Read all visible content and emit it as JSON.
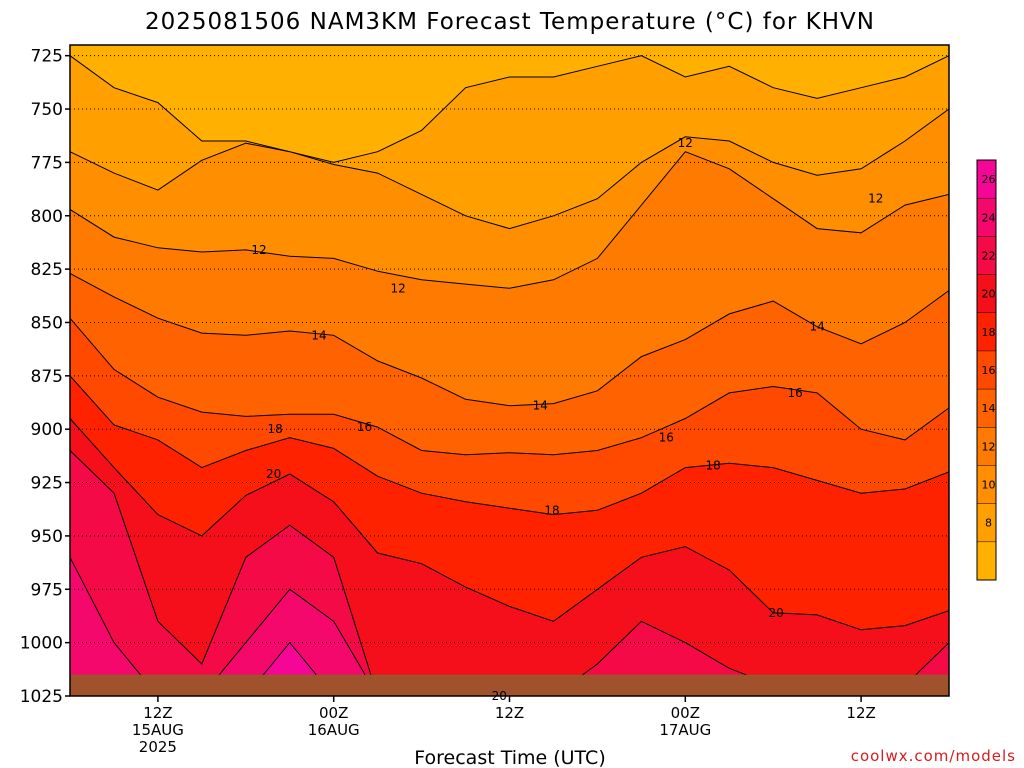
{
  "chart_data": {
    "type": "heatmap",
    "title": "2025081506 NAM3KM Forecast Temperature (°C) for KHVN",
    "xlabel": "Forecast Time (UTC)",
    "ylabel": "",
    "credit": "coolwx.com/models",
    "y_axis": {
      "ticks": [
        725,
        750,
        775,
        800,
        825,
        850,
        875,
        900,
        925,
        950,
        975,
        1000,
        1025
      ],
      "tick_labels": [
        "725",
        "750",
        "775",
        "800",
        "825",
        "850",
        "875",
        "900",
        "925",
        "950",
        "975",
        "1000",
        "1025"
      ],
      "range": [
        1025,
        720
      ]
    },
    "x_axis": {
      "range_hours": [
        0,
        60
      ],
      "ticks": [
        {
          "hour": 6,
          "line1": "12Z",
          "line2": "15AUG",
          "line3": "2025"
        },
        {
          "hour": 18,
          "line1": "00Z",
          "line2": "16AUG",
          "line3": ""
        },
        {
          "hour": 30,
          "line1": "12Z",
          "line2": "",
          "line3": ""
        },
        {
          "hour": 42,
          "line1": "00Z",
          "line2": "17AUG",
          "line3": ""
        },
        {
          "hour": 54,
          "line1": "12Z",
          "line2": "",
          "line3": ""
        }
      ]
    },
    "grid": true,
    "colorbar": {
      "ticks": [
        "8",
        "10",
        "12",
        "14",
        "16",
        "18",
        "20",
        "22",
        "24",
        "26"
      ],
      "levels": [
        6,
        8,
        10,
        12,
        14,
        16,
        18,
        20,
        22,
        24,
        26,
        28
      ],
      "colors": [
        "#ffb000",
        "#ffa000",
        "#ff8e00",
        "#ff7a00",
        "#ff6200",
        "#ff4800",
        "#ff2200",
        "#f40f1a",
        "#f50a48",
        "#f5086c",
        "#f50696"
      ]
    },
    "contour_labels": [
      {
        "text": "12",
        "hour": 12.9,
        "p": 816
      },
      {
        "text": "12",
        "hour": 22.4,
        "p": 834
      },
      {
        "text": "12",
        "hour": 42.0,
        "p": 766
      },
      {
        "text": "12",
        "hour": 55.0,
        "p": 792
      },
      {
        "text": "14",
        "hour": 17.0,
        "p": 856
      },
      {
        "text": "14",
        "hour": 32.1,
        "p": 889
      },
      {
        "text": "14",
        "hour": 51.0,
        "p": 852
      },
      {
        "text": "16",
        "hour": 20.1,
        "p": 899
      },
      {
        "text": "16",
        "hour": 40.7,
        "p": 904
      },
      {
        "text": "16",
        "hour": 49.5,
        "p": 883
      },
      {
        "text": "18",
        "hour": 14.0,
        "p": 900
      },
      {
        "text": "18",
        "hour": 32.9,
        "p": 938
      },
      {
        "text": "18",
        "hour": 43.9,
        "p": 917
      },
      {
        "text": "20",
        "hour": 13.9,
        "p": 921
      },
      {
        "text": "20",
        "hour": 48.2,
        "p": 986
      },
      {
        "text": "20",
        "hour": 29.3,
        "p": 1025
      }
    ],
    "temperature_profiles": {
      "note": "approximate isotherm pressure levels (hPa) at each sampled forecast hour",
      "hours": [
        0,
        3,
        6,
        9,
        12,
        15,
        18,
        21,
        24,
        27,
        30,
        33,
        36,
        39,
        42,
        45,
        48,
        51,
        54,
        57,
        60
      ],
      "isotherms": [
        {
          "temp": 8,
          "p": [
            725,
            740,
            747,
            765,
            765,
            770,
            775,
            770,
            760,
            740,
            735,
            735,
            730,
            725,
            735,
            730,
            740,
            745,
            740,
            735,
            725
          ]
        },
        {
          "temp": 10,
          "p": [
            770,
            780,
            788,
            774,
            766,
            770,
            776,
            780,
            790,
            800,
            806,
            800,
            792,
            775,
            763,
            765,
            775,
            781,
            778,
            765,
            750
          ]
        },
        {
          "temp": 12,
          "p": [
            797,
            810,
            815,
            817,
            816,
            819,
            820,
            826,
            830,
            832,
            834,
            830,
            820,
            795,
            770,
            778,
            792,
            806,
            808,
            795,
            790
          ]
        },
        {
          "temp": 14,
          "p": [
            827,
            838,
            848,
            855,
            856,
            854,
            856,
            868,
            876,
            886,
            889,
            888,
            882,
            866,
            858,
            846,
            840,
            852,
            860,
            850,
            835
          ]
        },
        {
          "temp": 16,
          "p": [
            848,
            872,
            885,
            892,
            894,
            893,
            893,
            899,
            910,
            912,
            911,
            912,
            910,
            904,
            895,
            883,
            880,
            883,
            900,
            905,
            890
          ]
        },
        {
          "temp": 18,
          "p": [
            875,
            898,
            905,
            918,
            910,
            904,
            909,
            922,
            930,
            934,
            937,
            940,
            938,
            930,
            918,
            916,
            918,
            924,
            930,
            928,
            920
          ]
        },
        {
          "temp": 20,
          "p": [
            895,
            918,
            940,
            950,
            931,
            921,
            934,
            958,
            963,
            974,
            983,
            990,
            975,
            960,
            955,
            966,
            986,
            987,
            994,
            992,
            985
          ]
        },
        {
          "temp": 22,
          "p": [
            910,
            930,
            990,
            1010,
            960,
            945,
            960,
            1025,
            1025,
            1025,
            1025,
            1025,
            1010,
            990,
            1000,
            1012,
            1020,
            1020,
            1025,
            1020,
            1000
          ]
        },
        {
          "temp": 24,
          "p": [
            960,
            1000,
            1025,
            1025,
            1000,
            975,
            990,
            1025,
            1025,
            1025,
            1025,
            1025,
            1025,
            1025,
            1025,
            1025,
            1025,
            1025,
            1025,
            1025,
            1025
          ]
        },
        {
          "temp": 26,
          "p": [
            1025,
            1025,
            1025,
            1025,
            1025,
            1000,
            1025,
            1025,
            1025,
            1025,
            1025,
            1025,
            1025,
            1025,
            1025,
            1025,
            1025,
            1025,
            1025,
            1025,
            1025
          ]
        }
      ]
    },
    "terrain_color": "#a0522d"
  }
}
